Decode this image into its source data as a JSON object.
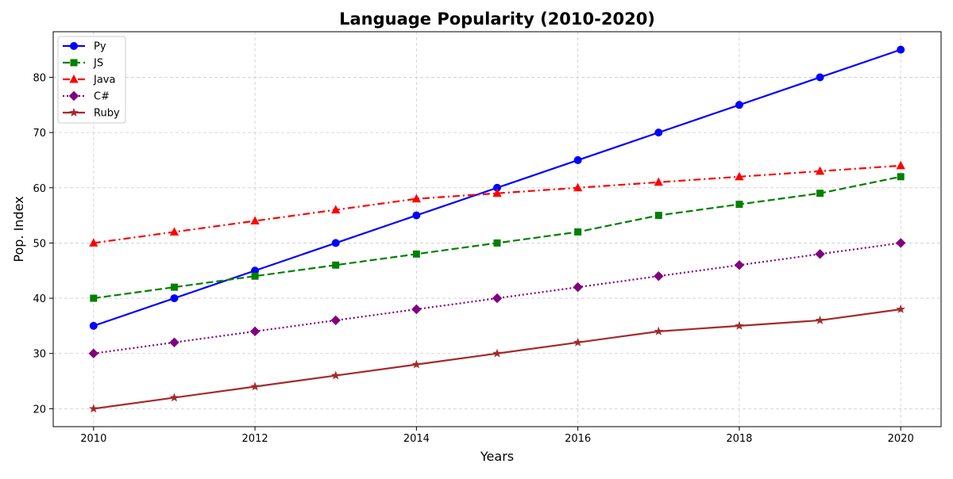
{
  "chart_data": {
    "type": "line",
    "title": "Language Popularity (2010-2020)",
    "xlabel": "Years",
    "ylabel": "Pop. Index",
    "x": [
      2010,
      2011,
      2012,
      2013,
      2014,
      2015,
      2016,
      2017,
      2018,
      2019,
      2020
    ],
    "xlim": [
      2009.5,
      2020.5
    ],
    "ylim": [
      16.75,
      88.25
    ],
    "x_ticks": [
      2010,
      2012,
      2014,
      2016,
      2018,
      2020
    ],
    "y_ticks": [
      20,
      30,
      40,
      50,
      60,
      70,
      80
    ],
    "grid": true,
    "legend_position": "top-left",
    "series": [
      {
        "name": "Py",
        "values": [
          35,
          40,
          45,
          50,
          55,
          60,
          65,
          70,
          75,
          80,
          85
        ],
        "color": "#0000ff",
        "line_style": "solid",
        "marker": "circle"
      },
      {
        "name": "JS",
        "values": [
          40,
          42,
          44,
          46,
          48,
          50,
          52,
          55,
          57,
          59,
          62
        ],
        "color": "#008000",
        "line_style": "dashed",
        "marker": "square"
      },
      {
        "name": "Java",
        "values": [
          50,
          52,
          54,
          56,
          58,
          59,
          60,
          61,
          62,
          63,
          64
        ],
        "color": "#ff0000",
        "line_style": "dashdot",
        "marker": "triangle"
      },
      {
        "name": "C#",
        "values": [
          30,
          32,
          34,
          36,
          38,
          40,
          42,
          44,
          46,
          48,
          50
        ],
        "color": "#800080",
        "line_style": "dotted",
        "marker": "diamond"
      },
      {
        "name": "Ruby",
        "values": [
          20,
          22,
          24,
          26,
          28,
          30,
          32,
          34,
          35,
          36,
          38
        ],
        "color": "#a52a2a",
        "line_style": "solid",
        "marker": "star"
      }
    ]
  }
}
